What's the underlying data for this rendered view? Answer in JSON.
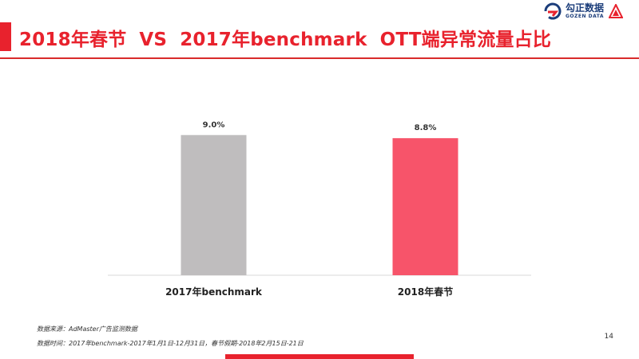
{
  "header": {
    "title_part1": "2018年春节",
    "title_part2": "VS",
    "title_part3": "2017年benchmark",
    "title_part4": "OTT端异常流量占比",
    "logo_cn": "勾正数据",
    "logo_en": "GOZEN DATA",
    "accent_color": "#e8222d",
    "logo_color": "#1b3d7a"
  },
  "chart_data": {
    "type": "bar",
    "categories": [
      "2017年benchmark",
      "2018年春节"
    ],
    "values": [
      9.0,
      8.8
    ],
    "labels": [
      "9.0%",
      "8.8%"
    ],
    "colors": [
      "#bfbdbe",
      "#f7546a"
    ],
    "ylim": [
      0,
      10.5
    ],
    "grid": false,
    "legend": "none"
  },
  "footer": {
    "source": "数据来源：AdMaster广告监测数据",
    "period": "数据时间：2017年benchmark-2017年1月1日-12月31日，春节假期-2018年2月15日-21日",
    "page_number": "14"
  }
}
